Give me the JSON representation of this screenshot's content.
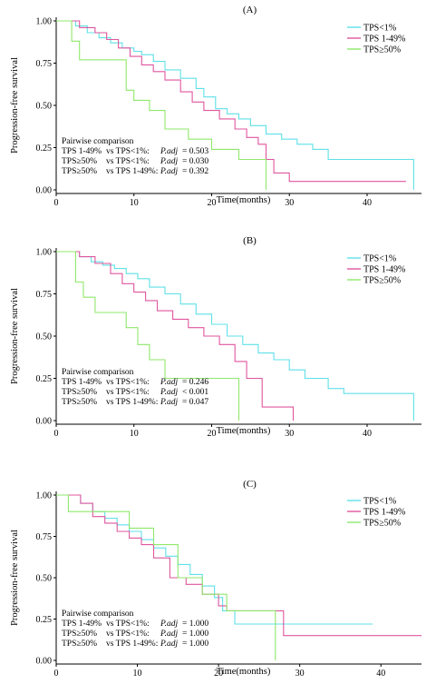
{
  "colors": {
    "tps_lt1": "#5fe0e8",
    "tps_1_49": "#e0569e",
    "tps_ge50": "#8fe86b"
  },
  "chart_data": [
    {
      "type": "line",
      "step": true,
      "title": "(A)",
      "xlabel": "Time(months)",
      "ylabel": "Progression-free survival",
      "xlim": [
        0,
        47
      ],
      "ylim": [
        0,
        1
      ],
      "xticks": [
        "0",
        "10",
        "20",
        "30",
        "40"
      ],
      "yticks": [
        "0.00",
        "0.25",
        "0.50",
        "0.75",
        "1.00"
      ],
      "legend": [
        "TPS<1%",
        "TPS 1-49%",
        "TPS≥50%"
      ],
      "legend_position": "top-right",
      "series": [
        {
          "name": "TPS<1%",
          "x": [
            0,
            2.5,
            4,
            5.5,
            7,
            8.5,
            10,
            11,
            12.5,
            14,
            16,
            18,
            19,
            20.5,
            22,
            23.5,
            25,
            27,
            29,
            31,
            33,
            35,
            46,
            46
          ],
          "y": [
            1.0,
            0.97,
            0.93,
            0.9,
            0.87,
            0.84,
            0.82,
            0.8,
            0.76,
            0.71,
            0.66,
            0.6,
            0.55,
            0.48,
            0.45,
            0.42,
            0.38,
            0.33,
            0.3,
            0.27,
            0.24,
            0.18,
            0.18,
            0.0
          ]
        },
        {
          "name": "TPS 1-49%",
          "x": [
            0,
            3,
            5,
            6.5,
            8,
            9.5,
            11,
            12.5,
            14,
            16,
            17.5,
            19,
            21,
            23,
            24.5,
            26,
            27,
            28,
            30,
            45
          ],
          "y": [
            1.0,
            0.96,
            0.93,
            0.89,
            0.84,
            0.79,
            0.74,
            0.7,
            0.65,
            0.58,
            0.52,
            0.47,
            0.42,
            0.36,
            0.31,
            0.27,
            0.18,
            0.1,
            0.05,
            0.05
          ]
        },
        {
          "name": "TPS≥50%",
          "x": [
            0,
            2,
            3,
            5,
            9,
            10,
            12,
            14,
            17,
            20,
            23.5,
            27,
            27
          ],
          "y": [
            1.0,
            0.88,
            0.77,
            0.77,
            0.59,
            0.53,
            0.47,
            0.36,
            0.3,
            0.24,
            0.18,
            0.18,
            0.0
          ]
        }
      ],
      "pairwise": {
        "heading": "Pairwise comparison",
        "rows": [
          {
            "a": "TPS 1-49%",
            "b": "vs TPS<1%:",
            "p_label": "P.adj",
            "p_value": "= 0.503"
          },
          {
            "a": "TPS≥50%",
            "b": "vs TPS<1%:",
            "p_label": "P.adj",
            "p_value": "= 0.030"
          },
          {
            "a": "TPS≥50%",
            "b": "vs TPS 1-49%:",
            "p_label": "P.adj",
            "p_value": "= 0.392"
          }
        ]
      }
    },
    {
      "type": "line",
      "step": true,
      "title": "(B)",
      "xlabel": "Time(months)",
      "ylabel": "Progression-free survival",
      "xlim": [
        0,
        47
      ],
      "ylim": [
        0,
        1
      ],
      "xticks": [
        "0",
        "10",
        "20",
        "30",
        "40"
      ],
      "yticks": [
        "0.00",
        "0.25",
        "0.50",
        "0.75",
        "1.00"
      ],
      "legend": [
        "TPS<1%",
        "TPS 1-49%",
        "TPS≥50%"
      ],
      "legend_position": "top-right",
      "series": [
        {
          "name": "TPS<1%",
          "x": [
            0,
            3,
            4.5,
            6,
            7.5,
            9,
            10.5,
            12,
            14,
            16,
            18,
            20,
            22,
            24,
            26,
            28,
            30,
            32,
            35,
            37,
            46,
            46
          ],
          "y": [
            1.0,
            0.97,
            0.94,
            0.92,
            0.9,
            0.87,
            0.84,
            0.79,
            0.75,
            0.69,
            0.63,
            0.57,
            0.5,
            0.45,
            0.4,
            0.36,
            0.3,
            0.25,
            0.19,
            0.16,
            0.16,
            0.0
          ]
        },
        {
          "name": "TPS 1-49%",
          "x": [
            0,
            3,
            5,
            7,
            8.5,
            10,
            11.5,
            13,
            15,
            17,
            19,
            21,
            23,
            24.5,
            26.5,
            30.5,
            30.5
          ],
          "y": [
            1.0,
            0.97,
            0.93,
            0.87,
            0.81,
            0.76,
            0.71,
            0.65,
            0.6,
            0.55,
            0.5,
            0.45,
            0.35,
            0.25,
            0.08,
            0.08,
            0.0
          ]
        },
        {
          "name": "TPS≥50%",
          "x": [
            0,
            2.5,
            3.5,
            5,
            9,
            10.5,
            12,
            14,
            23.5,
            23.5
          ],
          "y": [
            1.0,
            0.82,
            0.73,
            0.64,
            0.55,
            0.45,
            0.36,
            0.25,
            0.25,
            0.0
          ]
        }
      ],
      "pairwise": {
        "heading": "Pairwise  comparison",
        "rows": [
          {
            "a": "TPS 1-49%",
            "b": "vs TPS<1%:",
            "p_label": "P.adj",
            "p_value": "= 0.246"
          },
          {
            "a": "TPS≥50%",
            "b": "vs TPS<1%:",
            "p_label": "P.adj",
            "p_value": "< 0.001"
          },
          {
            "a": "TPS≥50%",
            "b": "vs TPS 1-49%:",
            "p_label": "P.adj",
            "p_value": "= 0.047"
          }
        ]
      }
    },
    {
      "type": "line",
      "step": true,
      "title": "(C)",
      "xlabel": "Time(months)",
      "ylabel": "Progression-free survival",
      "xlim": [
        0,
        45
      ],
      "ylim": [
        0,
        1
      ],
      "xticks": [
        "0",
        "10",
        "20",
        "30",
        "40"
      ],
      "yticks": [
        "0.00",
        "0.25",
        "0.50",
        "0.75",
        "1.00"
      ],
      "legend": [
        "TPS<1%",
        "TPS 1-49%",
        "TPS≥50%"
      ],
      "legend_position": "top-right",
      "series": [
        {
          "name": "TPS<1%",
          "x": [
            0,
            3,
            4.5,
            6,
            7.5,
            9,
            10.5,
            12,
            13.5,
            15,
            16.5,
            18,
            19.5,
            20.5,
            22,
            39
          ],
          "y": [
            1.0,
            0.95,
            0.9,
            0.86,
            0.82,
            0.78,
            0.73,
            0.68,
            0.63,
            0.58,
            0.52,
            0.45,
            0.38,
            0.3,
            0.22,
            0.22
          ]
        },
        {
          "name": "TPS 1-49%",
          "x": [
            0,
            3,
            4.5,
            6,
            7.5,
            9,
            10.5,
            12,
            14,
            16,
            18,
            20,
            21,
            28,
            45
          ],
          "y": [
            1.0,
            0.95,
            0.87,
            0.83,
            0.78,
            0.74,
            0.7,
            0.62,
            0.5,
            0.46,
            0.4,
            0.33,
            0.3,
            0.15,
            0.15
          ]
        },
        {
          "name": "TPS≥50%",
          "x": [
            0,
            1.5,
            6,
            9,
            12,
            15,
            18,
            21,
            27,
            27
          ],
          "y": [
            1.0,
            0.9,
            0.9,
            0.8,
            0.7,
            0.5,
            0.4,
            0.3,
            0.3,
            0.0
          ]
        }
      ],
      "pairwise": {
        "heading": "Pairwise  comparison",
        "rows": [
          {
            "a": "TPS 1-49%",
            "b": "vs TPS<1%:",
            "p_label": "P.adj",
            "p_value": "= 1.000"
          },
          {
            "a": "TPS≥50%",
            "b": "vs TPS<1%:",
            "p_label": "P.adj",
            "p_value": "= 1.000"
          },
          {
            "a": "TPS≥50%",
            "b": "vs TPS 1-49%:",
            "p_label": "P.adj",
            "p_value": "= 1.000"
          }
        ]
      }
    }
  ]
}
